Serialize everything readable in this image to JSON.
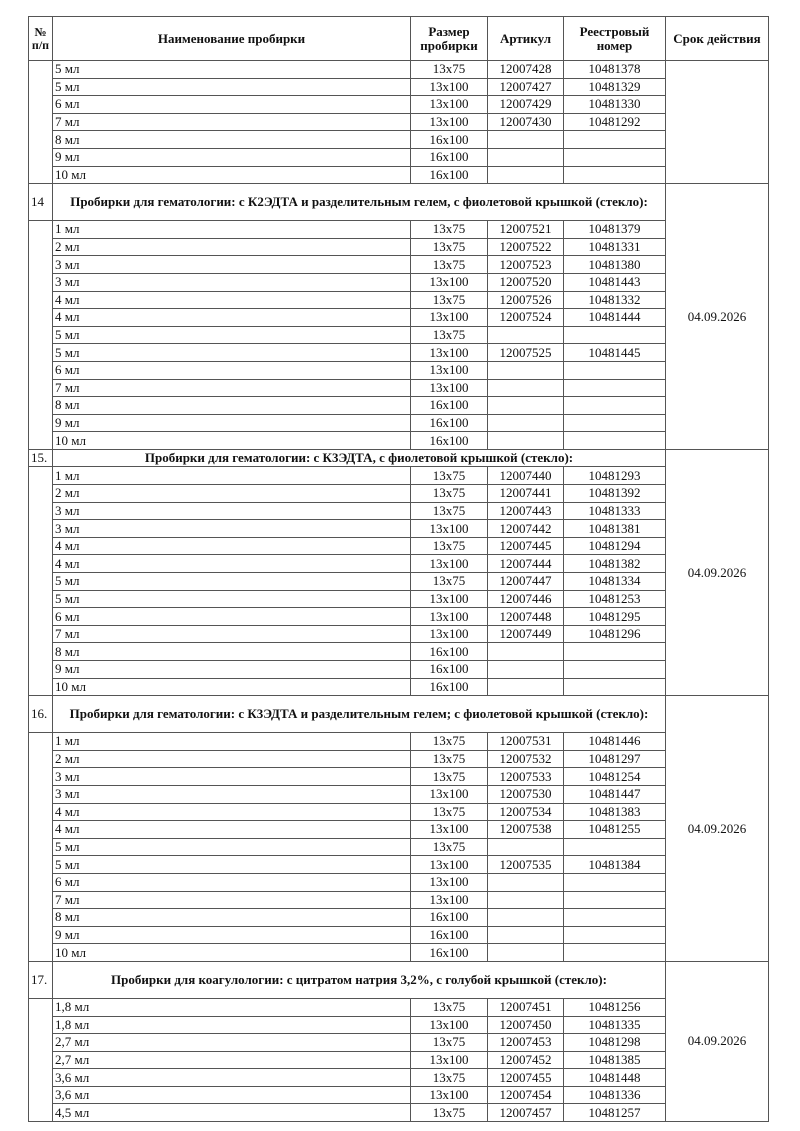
{
  "headers": {
    "num": "№ п/п",
    "name": "Наименование пробирки",
    "size": "Размер пробирки",
    "article": "Артикул",
    "registry": "Реестровый номер",
    "expiry": "Срок действия"
  },
  "sections": [
    {
      "number": "",
      "title": "",
      "expiry": "",
      "rows": [
        [
          "5 мл",
          "13x75",
          "12007428",
          "10481378"
        ],
        [
          "5 мл",
          "13x100",
          "12007427",
          "10481329"
        ],
        [
          "6 мл",
          "13x100",
          "12007429",
          "10481330"
        ],
        [
          "7 мл",
          "13x100",
          "12007430",
          "10481292"
        ],
        [
          "8 мл",
          "16x100",
          "",
          ""
        ],
        [
          "9 мл",
          "16x100",
          "",
          ""
        ],
        [
          "10 мл",
          "16x100",
          "",
          ""
        ]
      ]
    },
    {
      "number": "14",
      "title": "Пробирки для гематологии: с К2ЭДТА и разделительным гелем, с фиолетовой крышкой (стекло):",
      "expiry": "04.09.2026",
      "rows": [
        [
          "1 мл",
          "13x75",
          "12007521",
          "10481379"
        ],
        [
          "2 мл",
          "13x75",
          "12007522",
          "10481331"
        ],
        [
          "3 мл",
          "13x75",
          "12007523",
          "10481380"
        ],
        [
          "3 мл",
          "13x100",
          "12007520",
          "10481443"
        ],
        [
          "4 мл",
          "13x75",
          "12007526",
          "10481332"
        ],
        [
          "4 мл",
          "13x100",
          "12007524",
          "10481444"
        ],
        [
          "5 мл",
          "13x75",
          "",
          ""
        ],
        [
          "5 мл",
          "13x100",
          "12007525",
          "10481445"
        ],
        [
          "6 мл",
          "13x100",
          "",
          ""
        ],
        [
          "7 мл",
          "13x100",
          "",
          ""
        ],
        [
          "8 мл",
          "16x100",
          "",
          ""
        ],
        [
          "9 мл",
          "16x100",
          "",
          ""
        ],
        [
          "10 мл",
          "16x100",
          "",
          ""
        ]
      ]
    },
    {
      "number": "15.",
      "title": "Пробирки для гематологии: с К3ЭДТА, с фиолетовой крышкой (стекло):",
      "expiry": "04.09.2026",
      "rows": [
        [
          "1 мл",
          "13x75",
          "12007440",
          "10481293"
        ],
        [
          "2 мл",
          "13x75",
          "12007441",
          "10481392"
        ],
        [
          "3 мл",
          "13x75",
          "12007443",
          "10481333"
        ],
        [
          "3 мл",
          "13x100",
          "12007442",
          "10481381"
        ],
        [
          "4 мл",
          "13x75",
          "12007445",
          "10481294"
        ],
        [
          "4 мл",
          "13x100",
          "12007444",
          "10481382"
        ],
        [
          "5 мл",
          "13x75",
          "12007447",
          "10481334"
        ],
        [
          "5 мл",
          "13x100",
          "12007446",
          "10481253"
        ],
        [
          "6 мл",
          "13x100",
          "12007448",
          "10481295"
        ],
        [
          "7 мл",
          "13x100",
          "12007449",
          "10481296"
        ],
        [
          "8 мл",
          "16x100",
          "",
          ""
        ],
        [
          "9 мл",
          "16x100",
          "",
          ""
        ],
        [
          "10 мл",
          "16x100",
          "",
          ""
        ]
      ]
    },
    {
      "number": "16.",
      "title": "Пробирки для гематологии: с К3ЭДТА и разделительным гелем; с фиолетовой крышкой (стекло):",
      "expiry": "04.09.2026",
      "rows": [
        [
          "1 мл",
          "13x75",
          "12007531",
          "10481446"
        ],
        [
          "2 мл",
          "13x75",
          "12007532",
          "10481297"
        ],
        [
          "3 мл",
          "13x75",
          "12007533",
          "10481254"
        ],
        [
          "3 мл",
          "13x100",
          "12007530",
          "10481447"
        ],
        [
          "4 мл",
          "13x75",
          "12007534",
          "10481383"
        ],
        [
          "4 мл",
          "13x100",
          "12007538",
          "10481255"
        ],
        [
          "5 мл",
          "13x75",
          "",
          ""
        ],
        [
          "5 мл",
          "13x100",
          "12007535",
          "10481384"
        ],
        [
          "6 мл",
          "13x100",
          "",
          ""
        ],
        [
          "7 мл",
          "13x100",
          "",
          ""
        ],
        [
          "8 мл",
          "16x100",
          "",
          ""
        ],
        [
          "9 мл",
          "16x100",
          "",
          ""
        ],
        [
          "10 мл",
          "16x100",
          "",
          ""
        ]
      ]
    },
    {
      "number": "17.",
      "title": "Пробирки для коагулологии: с цитратом натрия 3,2%, с голубой крышкой (стекло):",
      "expiry": "04.09.2026",
      "rows": [
        [
          "1,8 мл",
          "13x75",
          "12007451",
          "10481256"
        ],
        [
          "1,8 мл",
          "13x100",
          "12007450",
          "10481335"
        ],
        [
          "2,7 мл",
          "13x75",
          "12007453",
          "10481298"
        ],
        [
          "2,7 мл",
          "13x100",
          "12007452",
          "10481385"
        ],
        [
          "3,6 мл",
          "13x75",
          "12007455",
          "10481448"
        ],
        [
          "3,6 мл",
          "13x100",
          "12007454",
          "10481336"
        ],
        [
          "4,5 мл",
          "13x75",
          "12007457",
          "10481257"
        ]
      ]
    }
  ]
}
